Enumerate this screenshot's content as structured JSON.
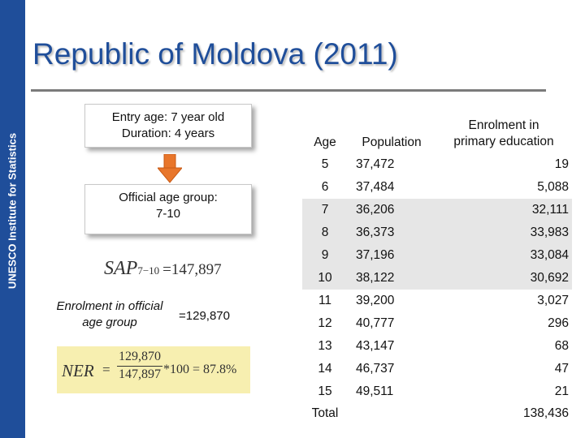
{
  "sidebar": {
    "label": "UNESCO Institute for Statistics"
  },
  "title": "Republic of Moldova (2011)",
  "left": {
    "box1": {
      "line1": "Entry age: 7 year old",
      "line2": "Duration: 4 years"
    },
    "box2": {
      "line1": "Official age group:",
      "line2": "7-10"
    },
    "sap": {
      "symbol": "SAP",
      "subscript": "7−10",
      "value": "=147,897"
    },
    "enrolment": {
      "line1": "Enrolment in official",
      "line2": "age group",
      "value": "=129,870"
    },
    "ner": {
      "symbol": "NER",
      "equals": "=",
      "numerator": "129,870",
      "denominator": "147,897",
      "rest": "*100 = 87.8%"
    }
  },
  "table": {
    "headers": {
      "age": "Age",
      "population": "Population",
      "enrolment_line1": "Enrolment in",
      "enrolment_line2": "primary education"
    },
    "rows": [
      {
        "age": "5",
        "population": "37,472",
        "enrolment": "19"
      },
      {
        "age": "6",
        "population": "37,484",
        "enrolment": "5,088"
      },
      {
        "age": "7",
        "population": "36,206",
        "enrolment": "32,111"
      },
      {
        "age": "8",
        "population": "36,373",
        "enrolment": "33,983"
      },
      {
        "age": "9",
        "population": "37,196",
        "enrolment": "33,084"
      },
      {
        "age": "10",
        "population": "38,122",
        "enrolment": "30,692"
      },
      {
        "age": "11",
        "population": "39,200",
        "enrolment": "3,027"
      },
      {
        "age": "12",
        "population": "40,777",
        "enrolment": "296"
      },
      {
        "age": "13",
        "population": "43,147",
        "enrolment": "68"
      },
      {
        "age": "14",
        "population": "46,737",
        "enrolment": "47"
      },
      {
        "age": "15",
        "population": "49,511",
        "enrolment": "21"
      }
    ],
    "total": {
      "label": "Total",
      "enrolment": "138,436"
    }
  },
  "colors": {
    "sidebar": "#1f4e9a",
    "title": "#1f4e9a",
    "arrow": "#e8762b",
    "highlight_band": "#e6e6e6",
    "ner_box": "#f7efb0"
  }
}
